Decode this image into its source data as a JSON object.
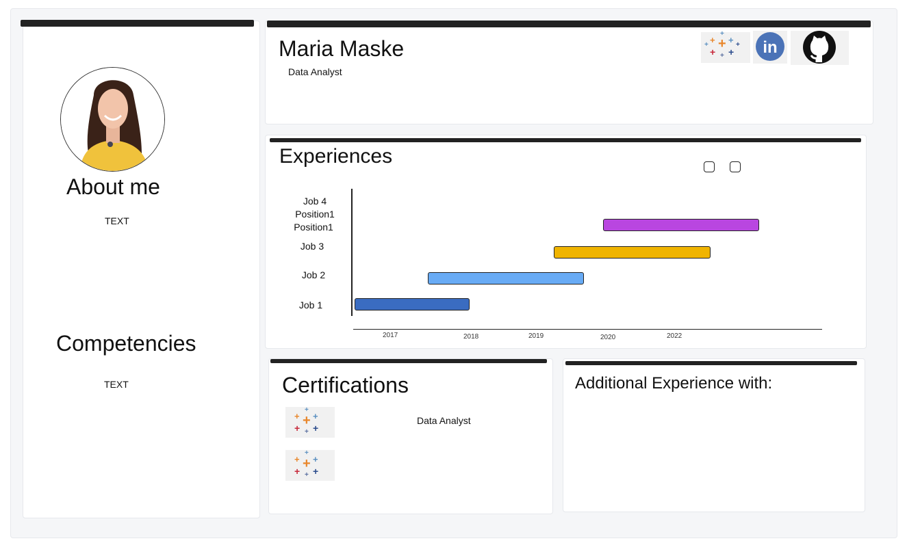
{
  "profile": {
    "about_title": "About me",
    "about_text": "TEXT",
    "competencies_title": "Competencies",
    "competencies_text": "TEXT"
  },
  "header": {
    "name": "Maria Maske",
    "role": "Data Analyst",
    "links": [
      "tableau-icon",
      "linkedin-icon",
      "github-icon"
    ]
  },
  "experiences": {
    "title": "Experiences",
    "y_labels": [
      "Job 4",
      "Position1",
      "Position1",
      "Job 3",
      "Job 2",
      "Job 1"
    ],
    "x_ticks": [
      "2017",
      "2018",
      "2019",
      "2020",
      "2022"
    ],
    "bar_colors": {
      "job1": "#3a6cc1",
      "job2": "#68abf5",
      "job3": "#f0b400",
      "job4": "#b946e0"
    }
  },
  "certifications": {
    "title": "Certifications",
    "items": [
      "Data Analyst"
    ]
  },
  "additional": {
    "title": "Additional Experience with:"
  }
}
